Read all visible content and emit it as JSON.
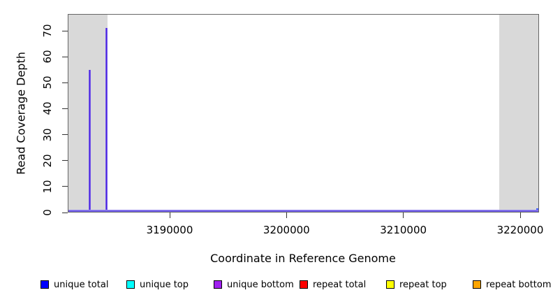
{
  "figure": {
    "background": "#ffffff"
  },
  "chart_data": {
    "type": "bar",
    "title": "",
    "xlabel": "Coordinate in Reference Genome",
    "ylabel": "Read Coverage Depth",
    "xlim": [
      3181300,
      3221600
    ],
    "ylim": [
      0,
      76
    ],
    "grid": false,
    "legend_position": "bottom",
    "x_ticks": [
      3190000,
      3200000,
      3210000,
      3220000
    ],
    "y_ticks": [
      0,
      10,
      20,
      30,
      40,
      50,
      60,
      70
    ],
    "shaded_regions": [
      {
        "x_start": 3181300,
        "x_end": 3184700
      },
      {
        "x_start": 3218200,
        "x_end": 3221600
      }
    ],
    "spikes": [
      {
        "x": 3183150,
        "value": 55,
        "series": "unique"
      },
      {
        "x": 3184600,
        "value": 71,
        "series": "unique"
      },
      {
        "x": 3221550,
        "value": 1.5,
        "series": "unique_total"
      }
    ],
    "baseline_value": 0,
    "legend": [
      {
        "label": "unique total",
        "color": "#0000ff"
      },
      {
        "label": "unique top",
        "color": "#00ffff"
      },
      {
        "label": "unique bottom",
        "color": "#a020f0"
      },
      {
        "label": "repeat total",
        "color": "#ff0000"
      },
      {
        "label": "repeat top",
        "color": "#ffff00"
      },
      {
        "label": "repeat bottom",
        "color": "#ffa500"
      }
    ]
  },
  "colors": {
    "shaded_region": "#d9d9d9",
    "spike_unique_core": "#4a26e2",
    "spike_unique_edge": "#9c86ee",
    "spike_total_blue": "#3b5bff",
    "baseline": "#6f5ce8",
    "baseline_halo": "#c6bef2",
    "plot_border": "#666666",
    "axis_tick": "#333333",
    "text": "#000000",
    "legend_swatch_border": "#000000"
  }
}
